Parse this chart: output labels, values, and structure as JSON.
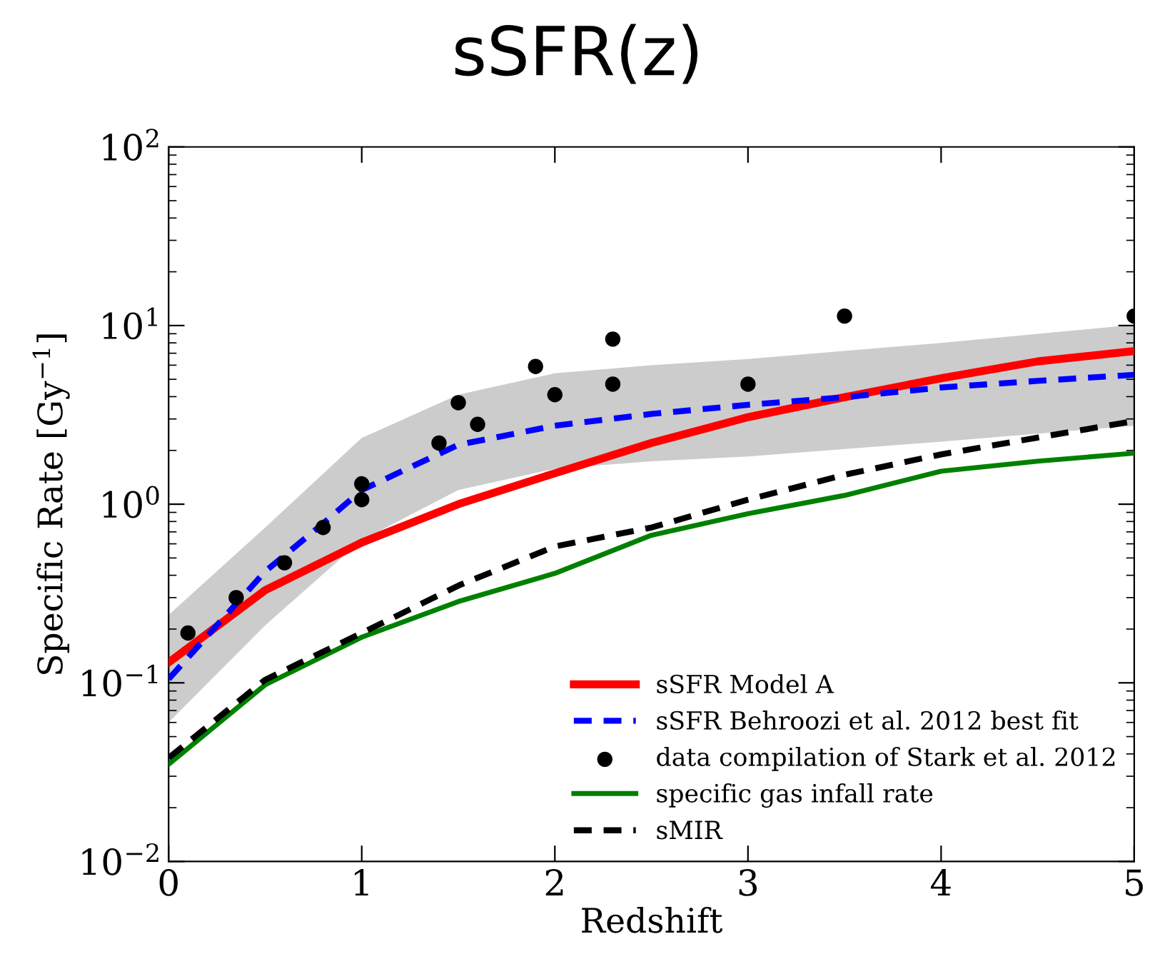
{
  "chart_data": {
    "type": "line",
    "title": "sSFR(z)",
    "xlabel": "Redshift",
    "ylabel": "Specific Rate [Gy$^{−1}$]",
    "log": "y",
    "xlim": [
      0,
      5
    ],
    "xticks": [
      0,
      1,
      2,
      3,
      4,
      5
    ],
    "ylim": [
      0.01,
      100
    ],
    "yticks": [
      {
        "value": 0.01,
        "label": "10$^{−2}$"
      },
      {
        "value": 0.1,
        "label": "10$^{−1}$"
      },
      {
        "value": 1,
        "label": "10$^{0}$"
      },
      {
        "value": 10,
        "label": "10$^{1}$"
      },
      {
        "value": 100,
        "label": "10$^{2}$"
      }
    ],
    "grid": false,
    "legend": "bottom right",
    "series": [
      {
        "name": "sSFR Model A",
        "color": "#ff0000",
        "line_style": "solid",
        "marker": "none",
        "x": [
          0,
          0.5,
          1,
          1.5,
          2,
          2.5,
          3,
          3.5,
          4,
          4.5,
          5
        ],
        "values": [
          0.13,
          0.33,
          0.61,
          1.0,
          1.49,
          2.2,
          3.07,
          3.97,
          5.07,
          6.3,
          7.2
        ]
      },
      {
        "name": "sSFR Behroozi et al. 2012 best fit",
        "color": "#0000ff",
        "line_style": "dashed",
        "marker": "none",
        "x": [
          0,
          0.5,
          0.8,
          1,
          1.5,
          2,
          2.5,
          3,
          3.5,
          4,
          4.5,
          5
        ],
        "values": [
          0.105,
          0.42,
          0.78,
          1.2,
          2.15,
          2.75,
          3.2,
          3.6,
          3.97,
          4.5,
          4.9,
          5.3
        ],
        "lower": [
          0.06,
          0.21,
          null,
          0.63,
          1.2,
          1.58,
          1.74,
          1.85,
          null,
          2.24,
          null,
          2.75
        ],
        "upper": [
          0.24,
          0.74,
          null,
          2.35,
          4.1,
          5.4,
          6.0,
          6.5,
          null,
          8.0,
          null,
          10.1
        ]
      },
      {
        "name": "data compilation of Stark et al. 2012",
        "type": "scatter",
        "color": "#000000",
        "marker": "circle",
        "x": [
          0.1,
          0.35,
          0.6,
          0.8,
          1.0,
          1.0,
          1.4,
          1.5,
          1.6,
          1.9,
          2.0,
          2.3,
          2.3,
          3.0,
          3.5,
          5.0
        ],
        "values": [
          0.19,
          0.3,
          0.47,
          0.74,
          1.3,
          1.06,
          2.2,
          3.7,
          2.8,
          5.9,
          4.1,
          8.4,
          4.7,
          4.7,
          11.3,
          11.3
        ]
      },
      {
        "name": "specific gas infall rate",
        "color": "#008000",
        "line_style": "solid",
        "marker": "none",
        "x": [
          0,
          0.5,
          1,
          1.5,
          2,
          2.5,
          3,
          3.5,
          4,
          4.5,
          5
        ],
        "values": [
          0.035,
          0.0975,
          0.18,
          0.285,
          0.41,
          0.67,
          0.885,
          1.12,
          1.53,
          1.74,
          1.93
        ]
      },
      {
        "name": "sMIR",
        "color": "#000000",
        "line_style": "dashed",
        "marker": "none",
        "x": [
          0,
          0.5,
          1,
          1.5,
          2,
          2.5,
          3,
          3.5,
          4,
          4.5,
          5
        ],
        "values": [
          0.038,
          0.104,
          0.19,
          0.35,
          0.58,
          0.74,
          1.06,
          1.46,
          1.9,
          2.36,
          2.92
        ]
      }
    ]
  }
}
